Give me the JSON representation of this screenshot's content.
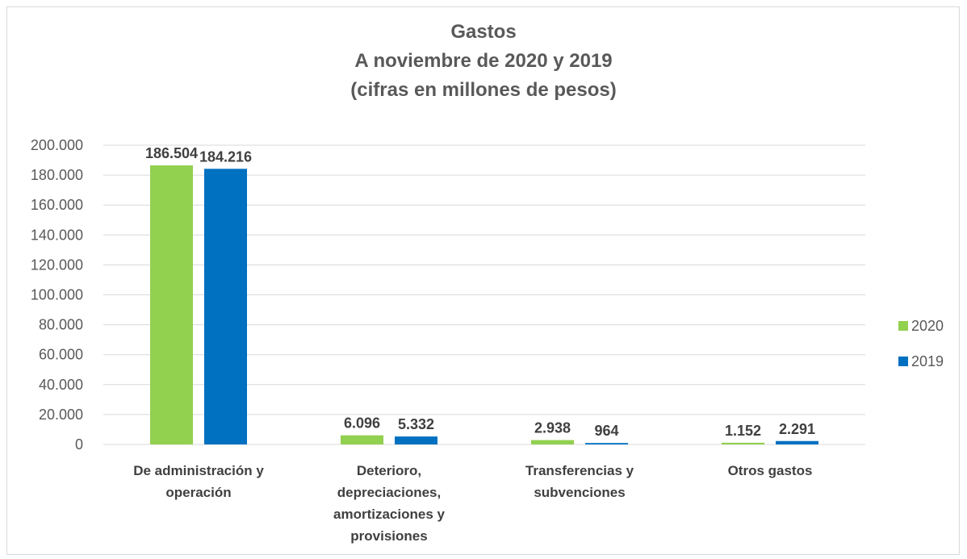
{
  "chart_data": {
    "type": "bar",
    "title": [
      "Gastos",
      "A noviembre de 2020 y 2019",
      "(cifras en millones de pesos)"
    ],
    "categories": [
      [
        "De administración y",
        "operación"
      ],
      [
        "Deterioro,",
        "depreciaciones,",
        "amortizaciones y",
        "provisiones"
      ],
      [
        "Transferencias y",
        "subvenciones"
      ],
      [
        "Otros gastos"
      ]
    ],
    "series": [
      {
        "name": "2020",
        "color": "#92d050",
        "values": [
          186504,
          6096,
          2938,
          1152
        ],
        "labels": [
          "186.504",
          "6.096",
          "2.938",
          "1.152"
        ]
      },
      {
        "name": "2019",
        "color": "#0070c0",
        "values": [
          184216,
          5332,
          964,
          2291
        ],
        "labels": [
          "184.216",
          "5.332",
          "964",
          "2.291"
        ]
      }
    ],
    "ylim": [
      0,
      200000
    ],
    "yticks": [
      "0",
      "20.000",
      "40.000",
      "60.000",
      "80.000",
      "100.000",
      "120.000",
      "140.000",
      "160.000",
      "180.000",
      "200.000"
    ],
    "grid": true,
    "legend_position": "right"
  }
}
